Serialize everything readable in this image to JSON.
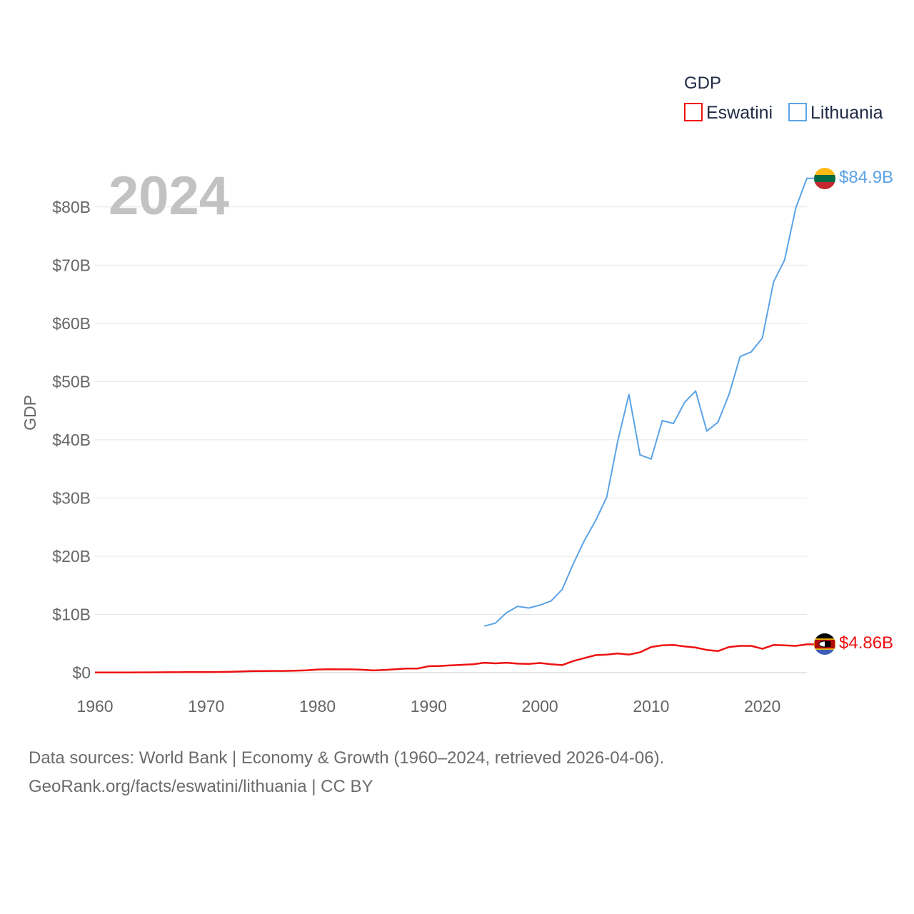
{
  "chart_data": {
    "type": "line",
    "title": "",
    "ylabel": "GDP",
    "xlabel": "",
    "year_label": "2024",
    "legend": {
      "title": "GDP",
      "position": "top-right"
    },
    "xlim": [
      1960,
      2024
    ],
    "ylim": [
      0,
      85000000000
    ],
    "x_ticks": [
      1960,
      1970,
      1980,
      1990,
      2000,
      2010,
      2020
    ],
    "x_tick_labels": [
      "1960",
      "1970",
      "1980",
      "1990",
      "2000",
      "2010",
      "2020"
    ],
    "y_ticks": [
      0,
      10000000000,
      20000000000,
      30000000000,
      40000000000,
      50000000000,
      60000000000,
      70000000000,
      80000000000
    ],
    "y_tick_labels": [
      "$0",
      "$10B",
      "$20B",
      "$30B",
      "$40B",
      "$50B",
      "$60B",
      "$70B",
      "$80B"
    ],
    "grid": true,
    "series": [
      {
        "name": "Eswatini",
        "color": "#ee1111",
        "end_label": "$4.86B",
        "flag_icon": "eswatini-flag-icon",
        "x": [
          1960,
          1961,
          1962,
          1963,
          1964,
          1965,
          1966,
          1967,
          1968,
          1969,
          1970,
          1971,
          1972,
          1973,
          1974,
          1975,
          1976,
          1977,
          1978,
          1979,
          1980,
          1981,
          1982,
          1983,
          1984,
          1985,
          1986,
          1987,
          1988,
          1989,
          1990,
          1991,
          1992,
          1993,
          1994,
          1995,
          1996,
          1997,
          1998,
          1999,
          2000,
          2001,
          2002,
          2003,
          2004,
          2005,
          2006,
          2007,
          2008,
          2009,
          2010,
          2011,
          2012,
          2013,
          2014,
          2015,
          2016,
          2017,
          2018,
          2019,
          2020,
          2021,
          2022,
          2023,
          2024
        ],
        "values": [
          30000000,
          32000000,
          35000000,
          40000000,
          50000000,
          55000000,
          65000000,
          70000000,
          80000000,
          90000000,
          100000000,
          110000000,
          130000000,
          200000000,
          260000000,
          280000000,
          290000000,
          300000000,
          330000000,
          400000000,
          540000000,
          580000000,
          560000000,
          560000000,
          500000000,
          380000000,
          460000000,
          580000000,
          700000000,
          700000000,
          1100000000,
          1150000000,
          1250000000,
          1350000000,
          1450000000,
          1700000000,
          1600000000,
          1700000000,
          1550000000,
          1500000000,
          1650000000,
          1450000000,
          1300000000,
          2000000000,
          2500000000,
          3000000000,
          3100000000,
          3300000000,
          3100000000,
          3500000000,
          4400000000,
          4700000000,
          4750000000,
          4500000000,
          4300000000,
          3900000000,
          3700000000,
          4400000000,
          4600000000,
          4600000000,
          4100000000,
          4750000000,
          4700000000,
          4600000000,
          4860000000
        ]
      },
      {
        "name": "Lithuania",
        "color": "#5ba3e6",
        "end_label": "$84.9B",
        "flag_icon": "lithuania-flag-icon",
        "x": [
          1995,
          1996,
          1997,
          1998,
          1999,
          2000,
          2001,
          2002,
          2003,
          2004,
          2005,
          2006,
          2007,
          2008,
          2009,
          2010,
          2011,
          2012,
          2013,
          2014,
          2015,
          2016,
          2017,
          2018,
          2019,
          2020,
          2021,
          2022,
          2023,
          2024
        ],
        "values": [
          8000000000,
          8500000000,
          10300000000,
          11400000000,
          11100000000,
          11600000000,
          12300000000,
          14300000000,
          18700000000,
          22700000000,
          26100000000,
          30100000000,
          39800000000,
          47800000000,
          37400000000,
          36700000000,
          43300000000,
          42800000000,
          46400000000,
          48400000000,
          41500000000,
          43000000000,
          47800000000,
          54300000000,
          55100000000,
          57500000000,
          67100000000,
          70900000000,
          79800000000,
          84900000000
        ]
      }
    ]
  },
  "footer": {
    "source_line": "Data sources: World Bank | Economy & Growth (1960–2024, retrieved 2026-04-06).",
    "credit_line": "GeoRank.org/facts/eswatini/lithuania | CC BY"
  }
}
